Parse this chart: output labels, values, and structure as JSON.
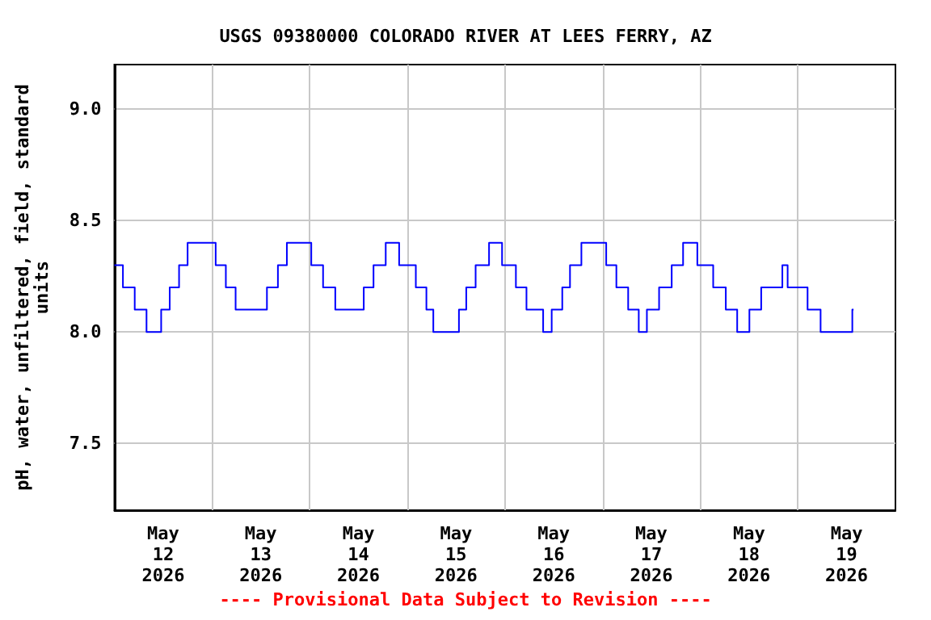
{
  "chart_data": {
    "type": "step",
    "title": "USGS 09380000 COLORADO RIVER AT LEES FERRY, AZ",
    "ylabel": "pH, water, unfiltered, field, standard\nunits",
    "annotations": [
      "---- Provisional Data Subject to Revision ----"
    ],
    "x": [
      "2026-05-12T00:00",
      "2026-05-12T02:06",
      "2026-05-12T05:00",
      "2026-05-12T07:54",
      "2026-05-12T11:30",
      "2026-05-12T13:36",
      "2026-05-12T15:54",
      "2026-05-12T18:00",
      "2026-05-13T00:54",
      "2026-05-13T03:24",
      "2026-05-13T05:48",
      "2026-05-13T13:30",
      "2026-05-13T16:12",
      "2026-05-13T18:24",
      "2026-05-14T00:24",
      "2026-05-14T03:18",
      "2026-05-14T06:18",
      "2026-05-14T13:18",
      "2026-05-14T15:42",
      "2026-05-14T18:42",
      "2026-05-14T22:00",
      "2026-05-15T02:06",
      "2026-05-15T04:42",
      "2026-05-15T06:24",
      "2026-05-15T12:42",
      "2026-05-15T14:30",
      "2026-05-15T16:48",
      "2026-05-15T20:06",
      "2026-05-15T23:18",
      "2026-05-16T02:42",
      "2026-05-16T05:18",
      "2026-05-16T09:24",
      "2026-05-16T11:30",
      "2026-05-16T14:06",
      "2026-05-16T16:00",
      "2026-05-16T18:48",
      "2026-05-17T00:54",
      "2026-05-17T03:24",
      "2026-05-17T06:18",
      "2026-05-17T08:54",
      "2026-05-17T10:54",
      "2026-05-17T13:54",
      "2026-05-17T17:00",
      "2026-05-17T19:48",
      "2026-05-17T23:18",
      "2026-05-18T03:12",
      "2026-05-18T06:18",
      "2026-05-18T09:06",
      "2026-05-18T12:06",
      "2026-05-18T15:00",
      "2026-05-18T20:12",
      "2026-05-18T21:30",
      "2026-05-19T02:24",
      "2026-05-19T05:36",
      "2026-05-19T13:24",
      "2026-05-19T13:42"
    ],
    "series": [
      {
        "color": "#0000ff",
        "values": [
          8.3,
          8.2,
          8.1,
          8.0,
          8.1,
          8.2,
          8.3,
          8.4,
          8.3,
          8.2,
          8.1,
          8.2,
          8.3,
          8.4,
          8.3,
          8.2,
          8.1,
          8.2,
          8.3,
          8.4,
          8.3,
          8.2,
          8.1,
          8.0,
          8.1,
          8.2,
          8.3,
          8.4,
          8.3,
          8.2,
          8.1,
          8.0,
          8.1,
          8.2,
          8.3,
          8.4,
          8.3,
          8.2,
          8.1,
          8.0,
          8.1,
          8.2,
          8.3,
          8.4,
          8.3,
          8.2,
          8.1,
          8.0,
          8.1,
          8.2,
          8.3,
          8.2,
          8.1,
          8.0,
          8.1,
          8.1
        ]
      }
    ],
    "xlim": [
      "2026-05-12T00:00",
      "2026-05-20T00:00"
    ],
    "xticks": [
      {
        "value": "2026-05-12T12:00",
        "label": "May\n12\n2026"
      },
      {
        "value": "2026-05-13T00:00",
        "label": null
      },
      {
        "value": "2026-05-13T12:00",
        "label": "May\n13\n2026"
      },
      {
        "value": "2026-05-14T00:00",
        "label": null
      },
      {
        "value": "2026-05-14T12:00",
        "label": "May\n14\n2026"
      },
      {
        "value": "2026-05-15T00:00",
        "label": null
      },
      {
        "value": "2026-05-15T12:00",
        "label": "May\n15\n2026"
      },
      {
        "value": "2026-05-16T00:00",
        "label": null
      },
      {
        "value": "2026-05-16T12:00",
        "label": "May\n16\n2026"
      },
      {
        "value": "2026-05-17T00:00",
        "label": null
      },
      {
        "value": "2026-05-17T12:00",
        "label": "May\n17\n2026"
      },
      {
        "value": "2026-05-18T00:00",
        "label": null
      },
      {
        "value": "2026-05-18T12:00",
        "label": "May\n18\n2026"
      },
      {
        "value": "2026-05-19T00:00",
        "label": null
      },
      {
        "value": "2026-05-19T12:00",
        "label": "May\n19\n2026"
      }
    ],
    "ylim": [
      7.2,
      9.2
    ],
    "yticks": [
      {
        "value": 7.5,
        "label": "7.5"
      },
      {
        "value": 8,
        "label": "8.0"
      },
      {
        "value": 8.5,
        "label": "8.5"
      },
      {
        "value": 9,
        "label": "9.0"
      }
    ],
    "grid": true,
    "marker": "none",
    "line_style": "solid"
  }
}
